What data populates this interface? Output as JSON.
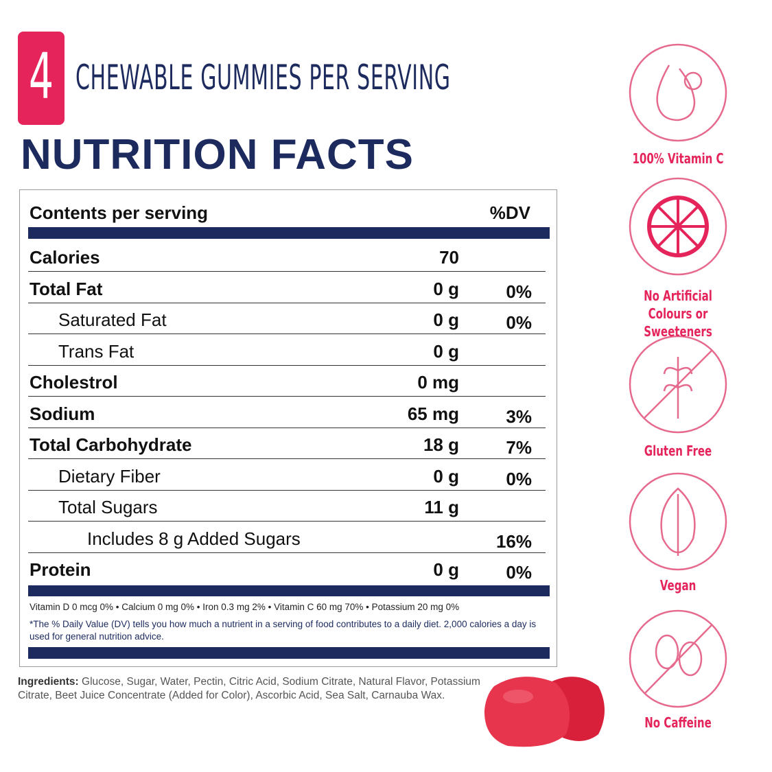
{
  "badge": {
    "number": "4",
    "text": "CHEWABLE GUMMIES PER SERVING"
  },
  "title": "NUTRITION FACTS",
  "table": {
    "header": {
      "label": "Contents per serving",
      "dv": "%DV"
    },
    "rows": [
      {
        "label": "Calories",
        "amount": "70"
      },
      {
        "label": "Total Fat",
        "amount": "0 g",
        "dv": "0%",
        "sub": [
          {
            "label": "Saturated Fat",
            "amount": "0 g",
            "dv": "0%"
          },
          {
            "label": "Trans Fat",
            "amount": "0 g"
          }
        ]
      },
      {
        "label": "Cholestrol",
        "amount": "0 mg"
      },
      {
        "label": "Sodium",
        "amount": "65 mg",
        "dv": "3%"
      },
      {
        "label": "Total Carbohydrate",
        "amount": "18 g",
        "dv": "7%",
        "sub": [
          {
            "label": "Dietary Fiber",
            "amount": "0 g",
            "dv": "0%"
          },
          {
            "label": "Total Sugars",
            "amount": "11 g",
            "sub": [
              {
                "label": "Includes 8 g Added Sugars",
                "dv": "16%"
              }
            ]
          }
        ]
      },
      {
        "label": "Protein",
        "amount": "0 g",
        "dv": "0%"
      }
    ],
    "vitamins": "Vitamin D 0 mcg 0% • Calcium 0 mg 0% • Iron 0.3 mg 2% • Vitamin C 60 mg 70% • Potassium 20 mg 0%",
    "footnote": "*The % Daily Value (DV) tells you how much a nutrient in a serving of food contributes to a daily diet. 2,000 calories a day is used for general nutrition advice."
  },
  "ingredients": {
    "label": "Ingredients:",
    "text": "Glucose, Sugar, Water, Pectin, Citric Acid, Sodium Citrate, Natural Flavor, Potassium Citrate, Beet Juice Concentrate (Added for Color), Ascorbic Acid, Sea Salt, Carnauba Wax."
  },
  "features": [
    "100% Vitamin C",
    "No Artificial Colours or Sweeteners",
    "Gluten Free",
    "Vegan",
    "No Caffeine"
  ]
}
